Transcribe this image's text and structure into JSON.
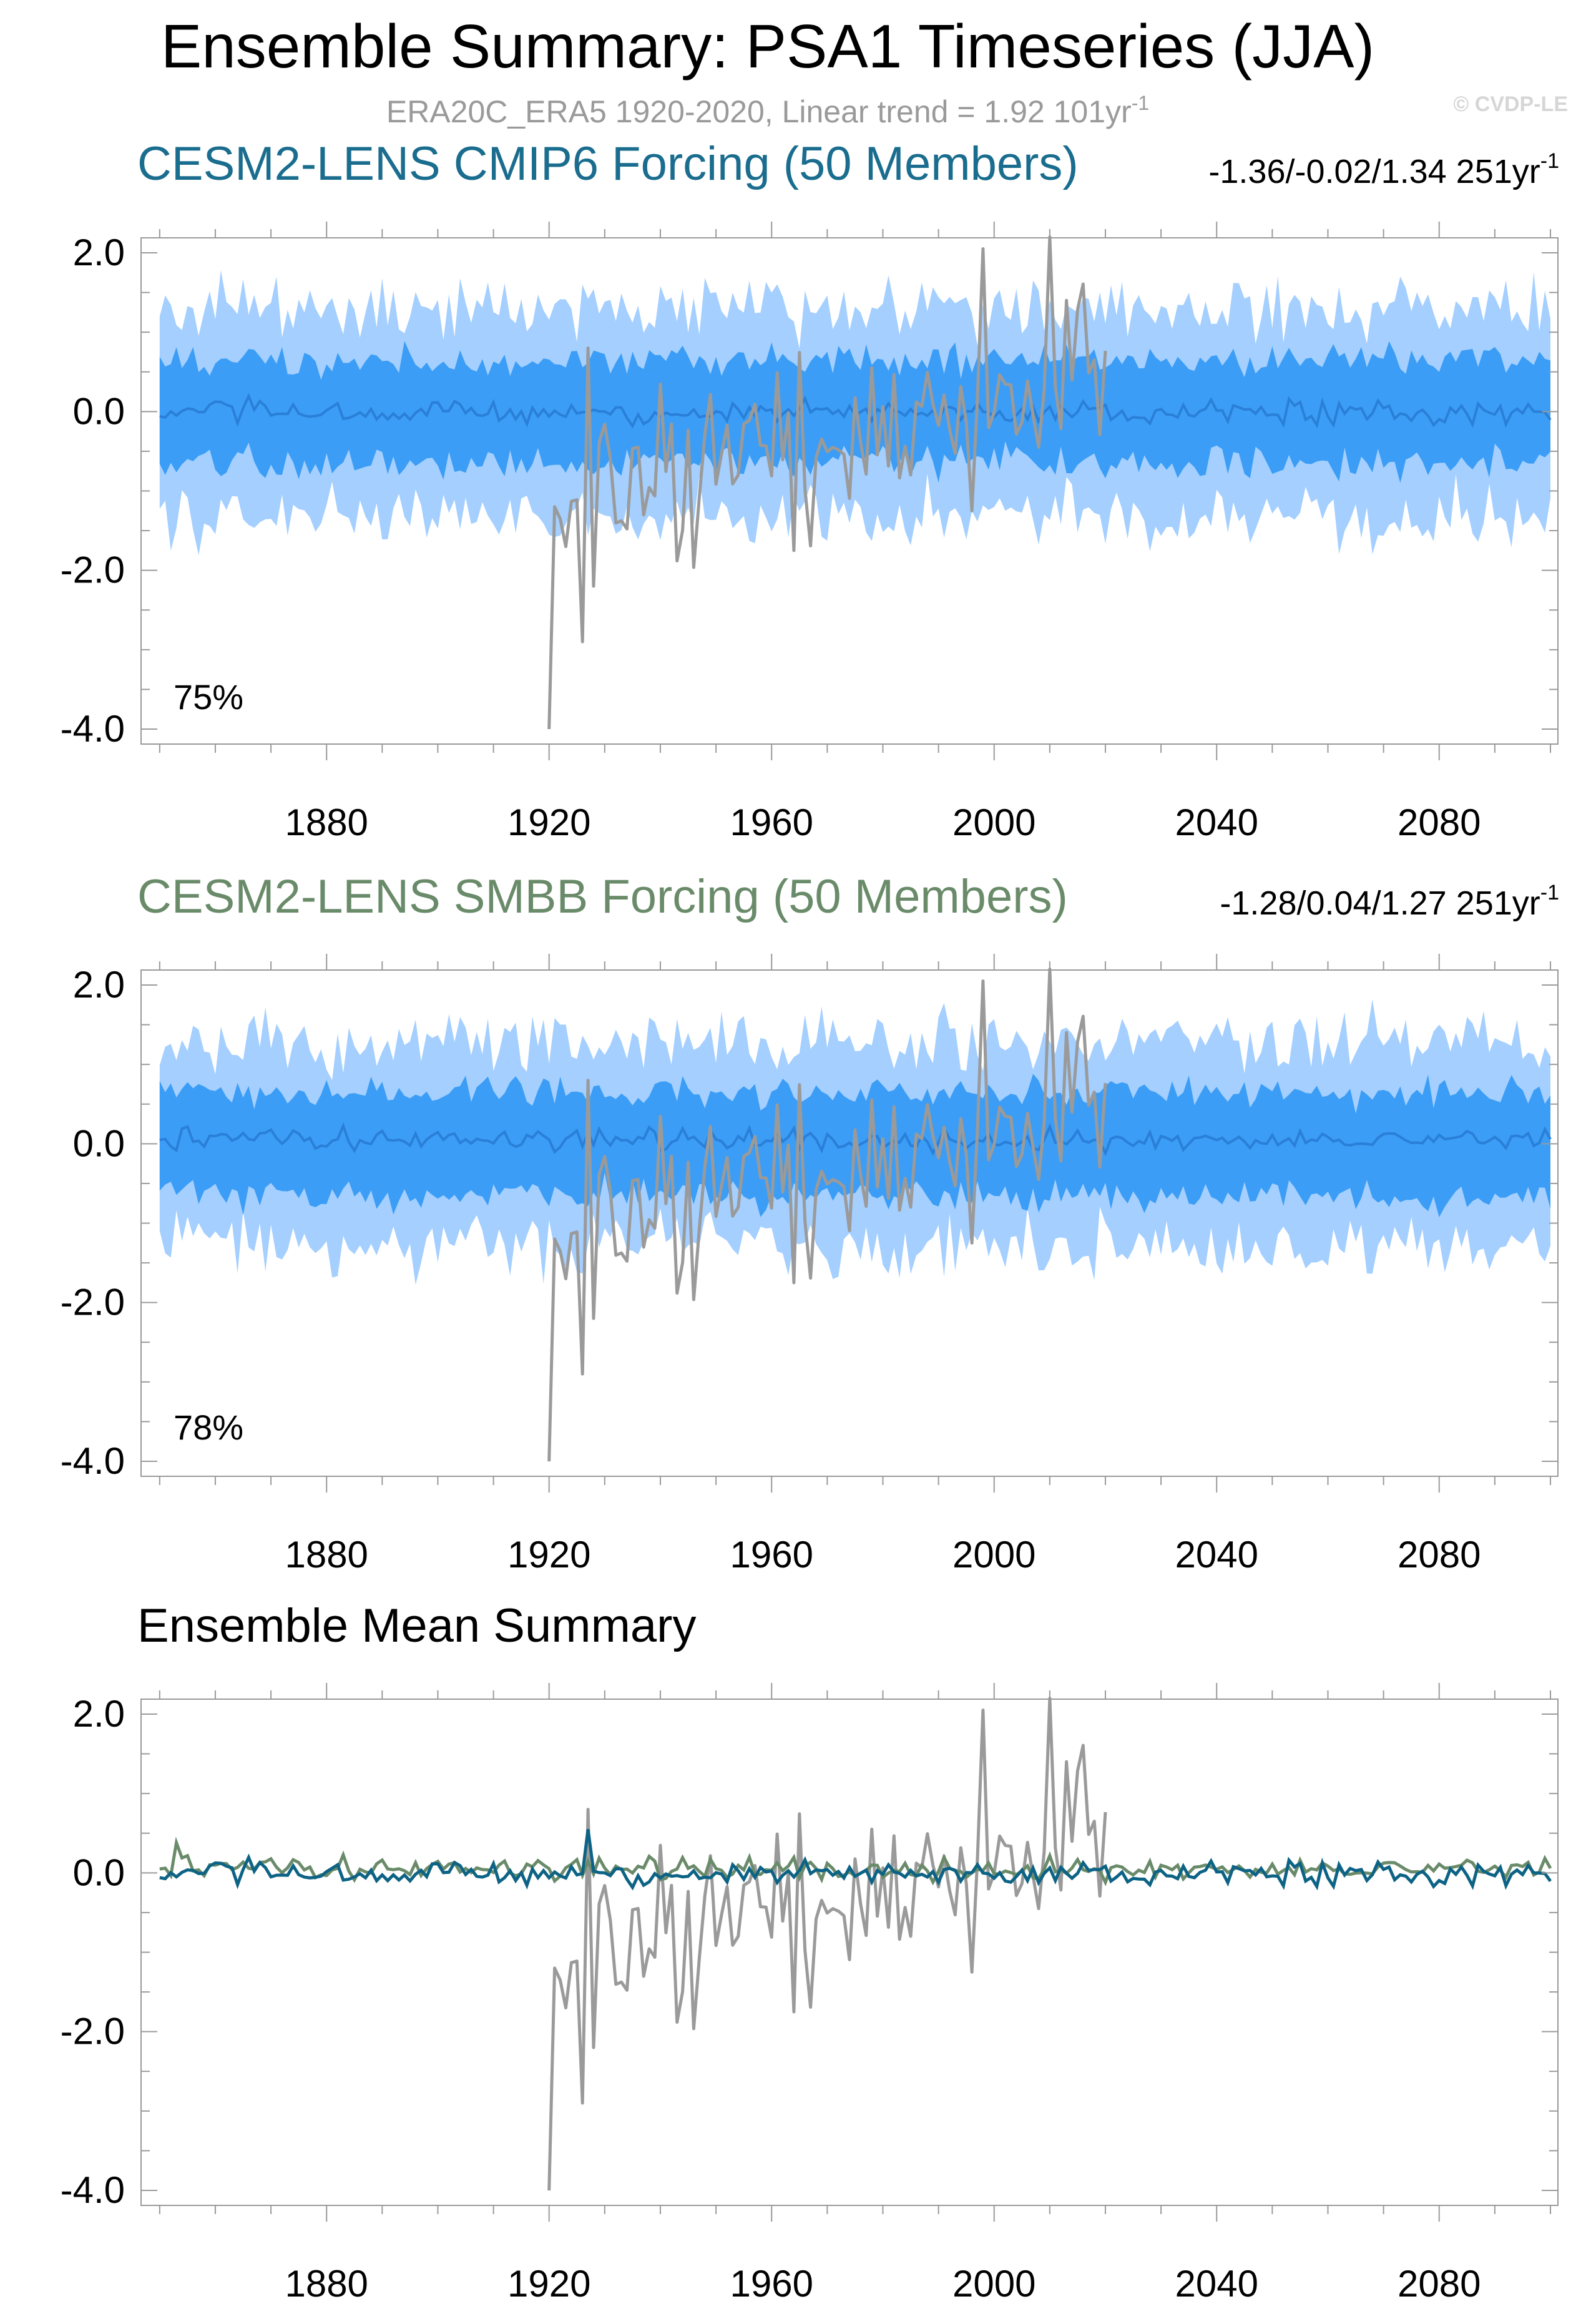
{
  "figure": {
    "title": "Ensemble Summary: PSA1 Timeseries (JJA)",
    "subtitle_base": "ERA20C_ERA5 1920-2020, Linear trend = 1.92 101yr",
    "subtitle_sup": "-1",
    "watermark": "© CVDP-LE"
  },
  "colors": {
    "band_outer": "#a4cfff",
    "band_inner": "#3b9df5",
    "ens_mean": "#2a7fd8",
    "obs": "#9a9a9a",
    "cmip6": "#0d6385",
    "smbb": "#6a8b6a"
  },
  "chart_data": [
    {
      "type": "area",
      "title": "CESM2-LENS CMIP6 Forcing (50 Members)",
      "title_color": "#1a6d8e",
      "stats_text": "-1.36/-0.02/1.34 251yr",
      "stats_sup": "-1",
      "percent_label": "75%",
      "x_range": [
        1850,
        2100
      ],
      "xlim": [
        1848,
        2100
      ],
      "ylim": [
        -4.0,
        2.0
      ],
      "x_ticks": [
        1880,
        1920,
        1960,
        2000,
        2040,
        2080
      ],
      "y_ticks": [
        2.0,
        0.0,
        -2.0,
        -4.0
      ],
      "y_tick_labels": [
        "2.0",
        "0.0",
        "-2.0",
        "-4.0"
      ],
      "series": [
        {
          "name": "ensemble 10-90% range",
          "summary": {
            "lower": -1.3,
            "upper": 1.3
          }
        },
        {
          "name": "ensemble 25-75% range",
          "summary": {
            "lower": -0.65,
            "upper": 0.65
          }
        },
        {
          "name": "ensemble mean",
          "summary": {
            "mean": -0.02
          }
        },
        {
          "name": "ERA20C_ERA5",
          "x_range": [
            1920,
            2020
          ],
          "extremes": {
            "min": -4.0,
            "min_year": 1920,
            "max": 2.2,
            "max_year": 2010
          }
        }
      ]
    },
    {
      "type": "area",
      "title": "CESM2-LENS SMBB Forcing (50 Members)",
      "title_color": "#6a8b6a",
      "stats_text": "-1.28/0.04/1.27 251yr",
      "stats_sup": "-1",
      "percent_label": "78%",
      "x_range": [
        1850,
        2100
      ],
      "xlim": [
        1848,
        2100
      ],
      "ylim": [
        -4.0,
        2.0
      ],
      "x_ticks": [
        1880,
        1920,
        1960,
        2000,
        2040,
        2080
      ],
      "y_ticks": [
        2.0,
        0.0,
        -2.0,
        -4.0
      ],
      "y_tick_labels": [
        "2.0",
        "0.0",
        "-2.0",
        "-4.0"
      ],
      "series": [
        {
          "name": "ensemble 10-90% range",
          "summary": {
            "lower": -1.3,
            "upper": 1.3
          }
        },
        {
          "name": "ensemble 25-75% range",
          "summary": {
            "lower": -0.65,
            "upper": 0.65
          }
        },
        {
          "name": "ensemble mean",
          "summary": {
            "mean": 0.04
          }
        },
        {
          "name": "ERA20C_ERA5",
          "x_range": [
            1920,
            2020
          ],
          "extremes": {
            "min": -4.0,
            "min_year": 1920,
            "max": 2.2,
            "max_year": 2010
          }
        }
      ]
    },
    {
      "type": "line",
      "title": "Ensemble Mean Summary",
      "title_color": "#000000",
      "xlim": [
        1848,
        2100
      ],
      "ylim": [
        -4.0,
        2.0
      ],
      "x_ticks": [
        1880,
        1920,
        1960,
        2000,
        2040,
        2080
      ],
      "y_ticks": [
        2.0,
        0.0,
        -2.0,
        -4.0
      ],
      "y_tick_labels": [
        "2.0",
        "0.0",
        "-2.0",
        "-4.0"
      ],
      "series": [
        {
          "name": "CESM2-LENS CMIP6 Forcing ensemble mean",
          "color": "#0d6385",
          "summary": {
            "mean": -0.02,
            "max": 0.55,
            "max_year": 1927
          }
        },
        {
          "name": "CESM2-LENS SMBB Forcing ensemble mean",
          "color": "#6a8b6a",
          "summary": {
            "mean": 0.04,
            "max": 0.38,
            "max_year": 1853
          }
        },
        {
          "name": "ERA20C_ERA5",
          "color": "#9a9a9a",
          "x_range": [
            1920,
            2020
          ],
          "extremes": {
            "min": -4.0,
            "min_year": 1920,
            "max": 2.2,
            "max_year": 2010
          }
        }
      ]
    }
  ]
}
